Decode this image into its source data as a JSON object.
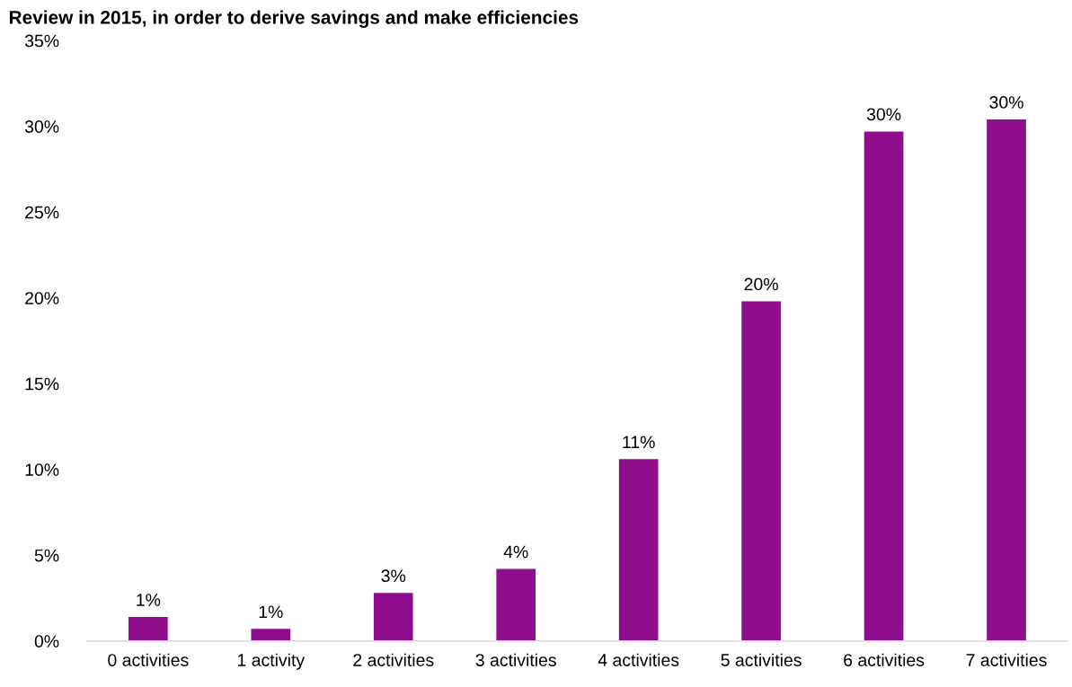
{
  "chart_data": {
    "type": "bar",
    "title": "Review in 2015, in order to derive savings and make efficiencies",
    "categories": [
      "0 activities",
      "1 activity",
      "2 activities",
      "3 activities",
      "4 activities",
      "5 activities",
      "6 activities",
      "7 activities"
    ],
    "values": [
      1.4,
      0.7,
      2.8,
      4.2,
      10.6,
      19.8,
      29.7,
      30.4
    ],
    "value_labels": [
      "1%",
      "1%",
      "3%",
      "4%",
      "11%",
      "20%",
      "30%",
      "30%"
    ],
    "color": "#8e0e8e",
    "ylim": [
      0,
      35
    ],
    "yticks": [
      {
        "value": 0,
        "label": "0%"
      },
      {
        "value": 5,
        "label": "5%"
      },
      {
        "value": 10,
        "label": "10%"
      },
      {
        "value": 15,
        "label": "15%"
      },
      {
        "value": 20,
        "label": "20%"
      },
      {
        "value": 25,
        "label": "25%"
      },
      {
        "value": 30,
        "label": "30%"
      },
      {
        "value": 35,
        "label": "35%"
      }
    ],
    "grid": false,
    "legend": false
  }
}
